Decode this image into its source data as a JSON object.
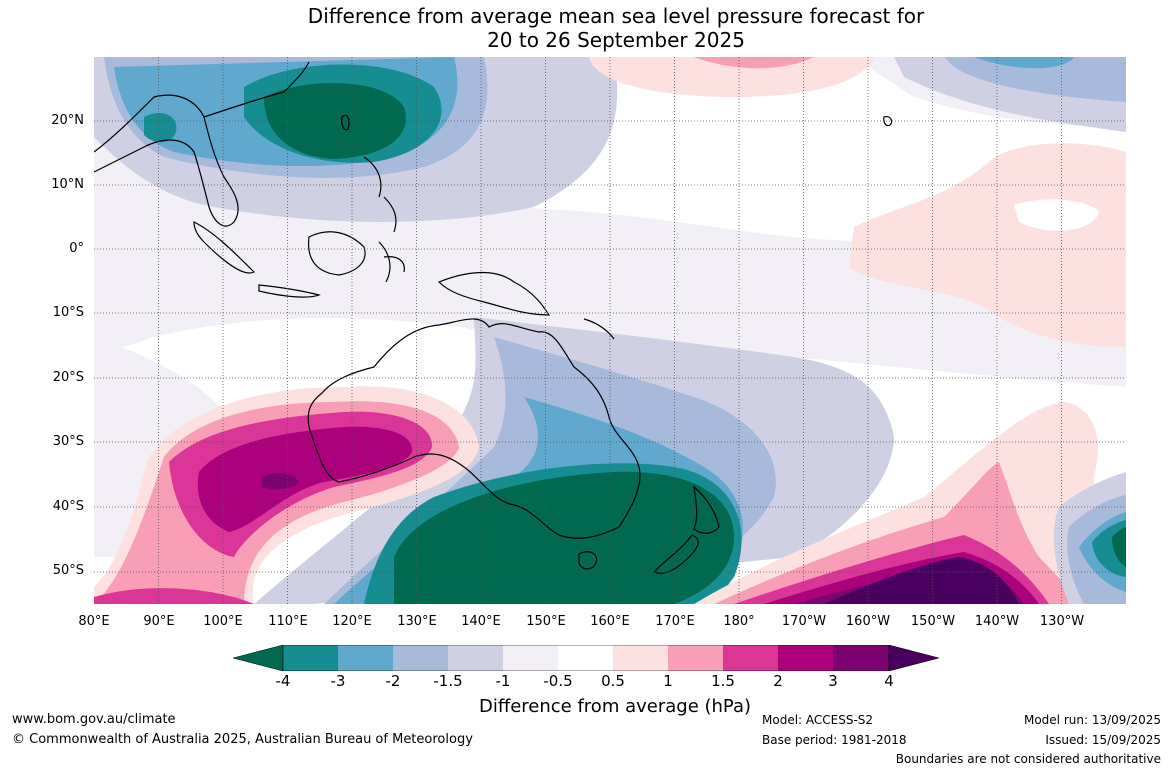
{
  "title": {
    "line1": "Difference from average mean sea level pressure forecast for",
    "line2": "20 to 26 September 2025"
  },
  "axes": {
    "lat_labels": [
      "20°N",
      "10°N",
      "0°",
      "10°S",
      "20°S",
      "30°S",
      "40°S",
      "50°S"
    ],
    "lon_labels": [
      "80°E",
      "90°E",
      "100°E",
      "110°E",
      "120°E",
      "130°E",
      "140°E",
      "150°E",
      "160°E",
      "170°E",
      "180°",
      "170°W",
      "160°W",
      "150°W",
      "140°W",
      "130°W"
    ]
  },
  "colorbar": {
    "labels": [
      "-4",
      "-3",
      "-2",
      "-1.5",
      "-1",
      "-0.5",
      "0.5",
      "1",
      "1.5",
      "2",
      "3",
      "4"
    ],
    "colors": [
      "#00694f",
      "#168e91",
      "#61a8cf",
      "#a8bad9",
      "#cfd0e3",
      "#f3eff7",
      "#ffffff",
      "#fde0e0",
      "#f89fb7",
      "#dc3598",
      "#ad007c",
      "#7b0472",
      "#4a0060"
    ],
    "title": "Difference from average (hPa)"
  },
  "footer": {
    "website": "www.bom.gov.au/climate",
    "copyright": "© Commonwealth of Australia 2025, Australian Bureau of Meteorology",
    "model": "Model: ACCESS-S2",
    "base_period": "Base period: 1981-2018",
    "model_run": "Model run: 13/09/2025",
    "issued": "Issued: 15/09/2025",
    "disclaimer": "Boundaries are not considered authoritative"
  }
}
